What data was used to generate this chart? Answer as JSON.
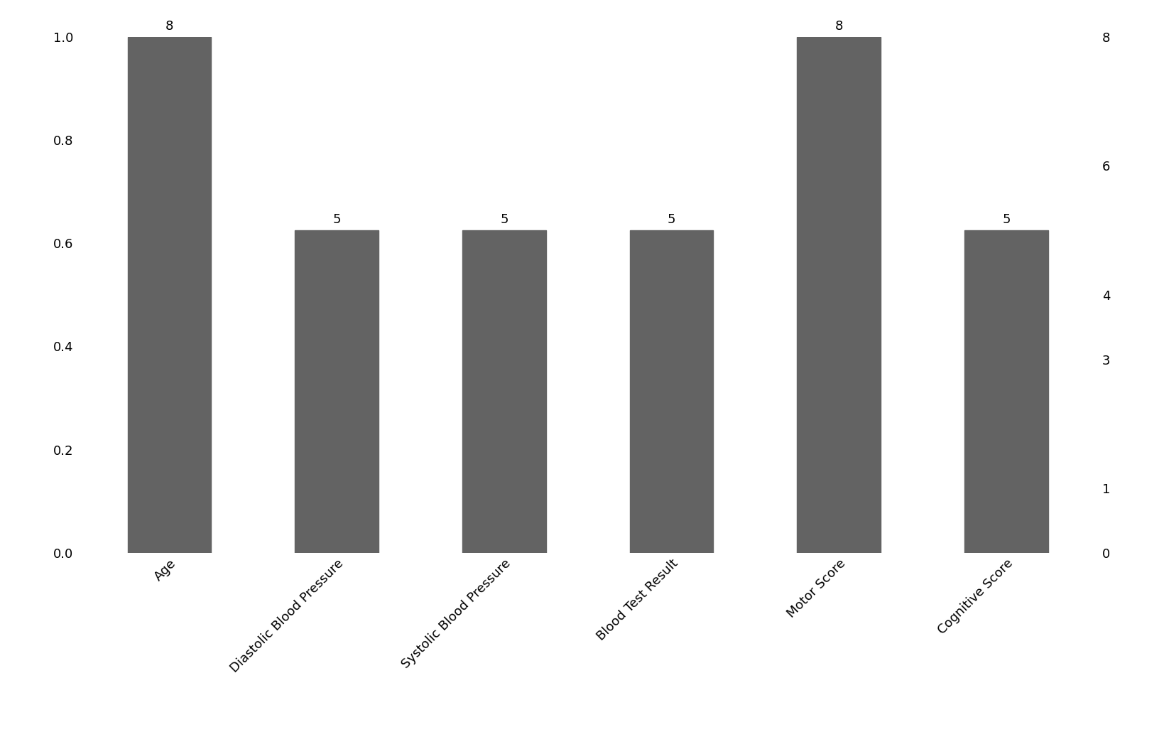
{
  "categories": [
    "Age",
    "Diastolic Blood Pressure",
    "Systolic Blood Pressure",
    "Blood Test Result",
    "Motor Score",
    "Cognitive Score"
  ],
  "values": [
    1.0,
    0.625,
    0.625,
    0.625,
    1.0,
    0.625
  ],
  "bar_labels": [
    "8",
    "5",
    "5",
    "5",
    "8",
    "5"
  ],
  "bar_color": "#636363",
  "ylim_left": [
    0.0,
    1.0
  ],
  "ylim_right": [
    0,
    8
  ],
  "right_yticks": [
    0,
    1,
    3,
    4,
    6,
    8
  ],
  "left_yticks": [
    0.0,
    0.2,
    0.4,
    0.6,
    0.8,
    1.0
  ],
  "figsize": [
    16.39,
    10.37
  ],
  "dpi": 100,
  "bar_width": 0.5,
  "background_color": "#ffffff",
  "label_fontsize": 13,
  "tick_fontsize": 13
}
